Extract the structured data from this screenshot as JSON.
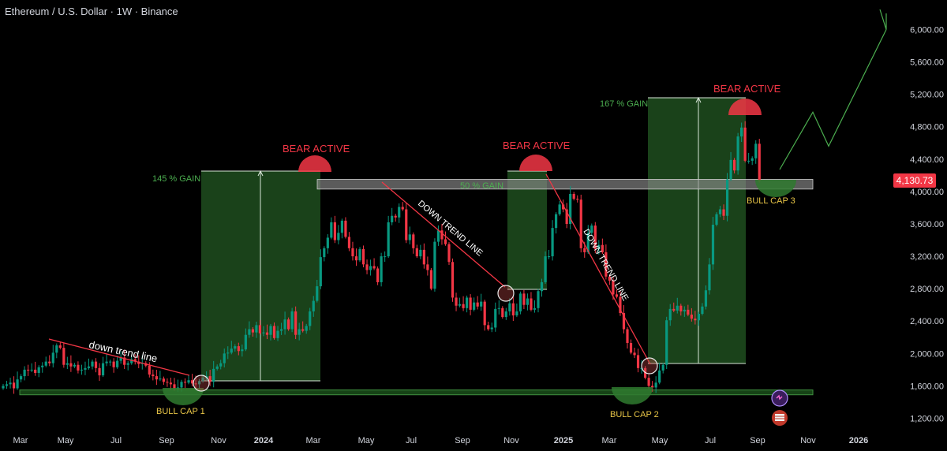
{
  "header": {
    "title": "Ethereum / U.S. Dollar · 1W · Binance"
  },
  "price_axis": {
    "labels": [
      "6,000.00",
      "5,600.00",
      "5,200.00",
      "4,800.00",
      "4,400.00",
      "4,000.00",
      "3,600.00",
      "3,200.00",
      "2,800.00",
      "2,400.00",
      "2,000.00",
      "1,600.00",
      "1,200.00"
    ],
    "values": [
      6000,
      5600,
      5200,
      4800,
      4400,
      4000,
      3600,
      3200,
      2800,
      2400,
      2000,
      1600,
      1200
    ],
    "current_price": "4,130.73",
    "current_value": 4130.73
  },
  "time_axis": {
    "labels": [
      "Mar",
      "May",
      "Jul",
      "Sep",
      "Nov",
      "2024",
      "Mar",
      "May",
      "Jul",
      "Sep",
      "Nov",
      "2025",
      "Mar",
      "May",
      "Jul",
      "Sep",
      "Nov",
      "2026"
    ]
  },
  "colors": {
    "up": "#089981",
    "down": "#f23645",
    "zone": "#1f4d1f",
    "zone_border": "#d8e6d8",
    "annotation_green": "#4caf50",
    "bear": "#f23645",
    "bull_cap": "#e8c547",
    "projection": "#4caf50"
  },
  "annotations": {
    "gain1": "145 % GAIN",
    "gain2": "50 % GAIN",
    "gain3": "167 % GAIN",
    "bear1": "BEAR ACTIVE",
    "bear2": "BEAR ACTIVE",
    "bear3": "BEAR ACTIVE",
    "bull1": "BULL CAP 1",
    "bull2": "BULL CAP 2",
    "bull3": "BULL CAP 3",
    "dtl1": "down trend line",
    "dtl2": "DOWN TREND LINE",
    "dtl3": "DOWN TREND LINE"
  },
  "chart_data": {
    "type": "candlestick",
    "title": "Ethereum / U.S. Dollar · 1W · Binance",
    "ylim": [
      1200,
      6000
    ],
    "resistance_zone": [
      4030,
      4150
    ],
    "support_zone": [
      1490,
      1550
    ],
    "projection": [
      4130,
      4980,
      4560,
      6000
    ],
    "weekly_closes": [
      1600,
      1620,
      1640,
      1570,
      1680,
      1720,
      1800,
      1790,
      1800,
      1760,
      1830,
      1850,
      1900,
      1880,
      2010,
      2100,
      2070,
      1860,
      1880,
      1840,
      1860,
      1790,
      1800,
      1820,
      1840,
      1900,
      1820,
      1730,
      1880,
      1900,
      1900,
      1830,
      1910,
      1950,
      1860,
      1880,
      1930,
      1900,
      1870,
      1880,
      1850,
      1740,
      1720,
      1680,
      1690,
      1650,
      1640,
      1620,
      1560,
      1580,
      1650,
      1640,
      1670,
      1630,
      1620,
      1660,
      1700,
      1720,
      1650,
      1810,
      1840,
      1880,
      2000,
      2010,
      2060,
      2090,
      2030,
      2050,
      2230,
      2300,
      2260,
      2350,
      2250,
      2260,
      2230,
      2340,
      2190,
      2280,
      2300,
      2420,
      2300,
      2520,
      2230,
      2300,
      2280,
      2340,
      2520,
      2650,
      2830,
      3190,
      3300,
      3430,
      3620,
      3400,
      3490,
      3640,
      3440,
      3300,
      3200,
      3150,
      3290,
      3100,
      3030,
      3080,
      3050,
      2880,
      3200,
      3200,
      3620,
      3700,
      3680,
      3810,
      3780,
      3400,
      3470,
      3300,
      3200,
      3280,
      3100,
      3030,
      2800,
      3380,
      3520,
      3410,
      3350,
      3130,
      2690,
      2590,
      2610,
      2560,
      2690,
      2540,
      2630,
      2580,
      2640,
      2350,
      2300,
      2320,
      2550,
      2560,
      2450,
      2520,
      2620,
      2470,
      2520,
      2740,
      2600,
      2680,
      2540,
      2560,
      2770,
      2880,
      3200,
      3200,
      3550,
      3720,
      3840,
      3780,
      3600,
      3970,
      3910,
      3900,
      3300,
      3250,
      3490,
      3580,
      3290,
      3340,
      3250,
      2950,
      2900,
      2730,
      2700,
      2500,
      2300,
      2130,
      2010,
      1980,
      1820,
      1820,
      1700,
      1600,
      1580,
      1640,
      1790,
      1860,
      2410,
      2550,
      2530,
      2590,
      2520,
      2540,
      2480,
      2430,
      2410,
      2490,
      2580,
      2780,
      3100,
      3590,
      3720,
      3780,
      3700,
      4150,
      4390,
      4260,
      4680,
      4790,
      4380,
      4380,
      4410,
      4590,
      4130
    ]
  }
}
